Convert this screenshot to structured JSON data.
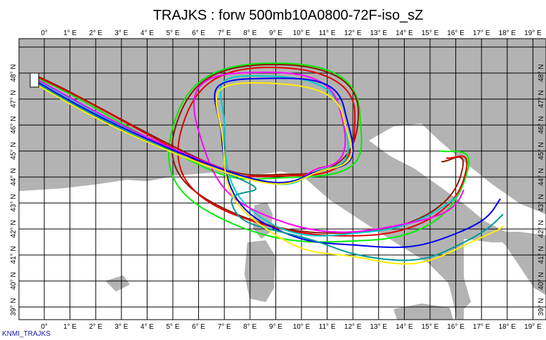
{
  "header": {
    "title": "TRAJKS : forw 500mb10A0800-72F-iso_sZ"
  },
  "axes": {
    "longitudes": [
      "0°",
      "1° E",
      "2° E",
      "3° E",
      "4° E",
      "5° E",
      "6° E",
      "7° E",
      "8° E",
      "9° E",
      "10° E",
      "11° E",
      "12° E",
      "13° E",
      "14° E",
      "15° E",
      "16° E",
      "17° E",
      "18° E",
      "19° E"
    ],
    "latitudes": [
      "48° N",
      "47° N",
      "46° N",
      "45° N",
      "44° N",
      "43° N",
      "42° N",
      "41° N",
      "40° N",
      "39° N"
    ]
  },
  "footer": {
    "label": "KNMI_TRAJKS"
  }
}
